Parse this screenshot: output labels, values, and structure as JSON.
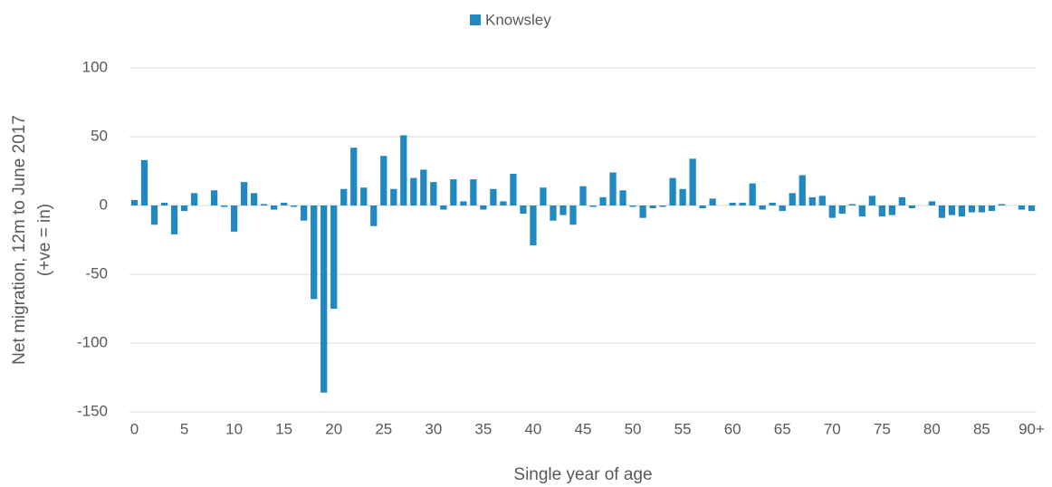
{
  "chart_data": {
    "type": "bar",
    "legend": "Knowsley",
    "legend_position": "top",
    "x_label": "Single year of age",
    "y_label": [
      "Net migration, 12m to June 2017",
      "(+ve = in)"
    ],
    "color": "#2189c2",
    "categories": [
      "0",
      null,
      null,
      null,
      null,
      "5",
      null,
      null,
      null,
      null,
      "10",
      null,
      null,
      null,
      null,
      "15",
      null,
      null,
      null,
      null,
      "20",
      null,
      null,
      null,
      null,
      "25",
      null,
      null,
      null,
      null,
      "30",
      null,
      null,
      null,
      null,
      "35",
      null,
      null,
      null,
      null,
      "40",
      null,
      null,
      null,
      null,
      "45",
      null,
      null,
      null,
      null,
      "50",
      null,
      null,
      null,
      null,
      "55",
      null,
      null,
      null,
      null,
      "60",
      null,
      null,
      null,
      null,
      "65",
      null,
      null,
      null,
      null,
      "70",
      null,
      null,
      null,
      null,
      "75",
      null,
      null,
      null,
      null,
      "80",
      null,
      null,
      null,
      null,
      "85",
      null,
      null,
      null,
      null,
      "90+"
    ],
    "values": [
      4,
      33,
      -14,
      2,
      -21,
      -4,
      9,
      0,
      11,
      -1,
      -19,
      17,
      9,
      1,
      -3,
      2,
      -1,
      -11,
      -68,
      -136,
      -75,
      12,
      42,
      13,
      -15,
      36,
      12,
      51,
      20,
      26,
      17,
      -3,
      19,
      3,
      19,
      -3,
      12,
      3,
      23,
      -6,
      -29,
      13,
      -11,
      -7,
      -14,
      14,
      -1,
      6,
      24,
      11,
      -1,
      -9,
      -2,
      -1,
      20,
      12,
      34,
      -2,
      5,
      0,
      2,
      2,
      16,
      -3,
      2,
      -4,
      9,
      22,
      6,
      7,
      -9,
      -6,
      1,
      -8,
      7,
      -8,
      -7,
      6,
      -2,
      0,
      3,
      -9,
      -7,
      -8,
      -5,
      -5,
      -4,
      1,
      0,
      -3,
      -4
    ],
    "ylim": [
      -150,
      100
    ],
    "yticks": [
      -150,
      -100,
      -50,
      0,
      50,
      100
    ],
    "grid": true
  }
}
